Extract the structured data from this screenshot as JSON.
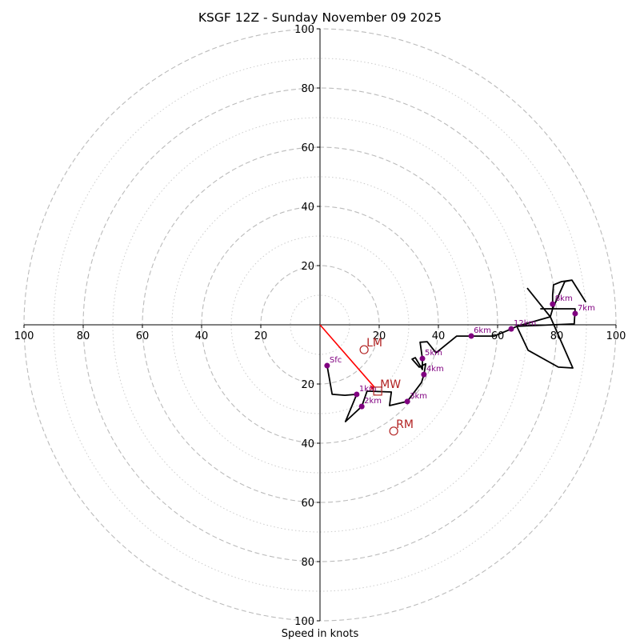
{
  "chart_data": {
    "type": "hodograph",
    "title": "KSGF 12Z - Sunday November 09 2025",
    "xlabel": "Speed in knots",
    "ylabel": "",
    "range_knots": 100,
    "ring_major_knots": [
      20,
      40,
      60,
      80,
      100
    ],
    "ring_minor_knots": [
      10,
      30,
      50,
      70,
      90
    ],
    "x_tick_labels": [
      "100",
      "80",
      "60",
      "40",
      "20",
      "20",
      "40",
      "60",
      "80",
      "100"
    ],
    "x_tick_values": [
      -100,
      -80,
      -60,
      -40,
      -20,
      20,
      40,
      60,
      80,
      100
    ],
    "y_tick_labels": [
      "100",
      "80",
      "60",
      "40",
      "20",
      "20",
      "40",
      "60",
      "80",
      "100"
    ],
    "y_tick_values": [
      100,
      80,
      60,
      40,
      20,
      -20,
      -40,
      -60,
      -80,
      -100
    ],
    "grid": true,
    "colors": {
      "trace": "#000000",
      "height_marker": "#800080",
      "storm_motion": "#b22222",
      "shear_vector": "#ff0000",
      "ring": "#bbbbbb"
    },
    "trace_uv": [
      [
        2.4,
        -13.8
      ],
      [
        4.1,
        -23.5
      ],
      [
        8.4,
        -23.8
      ],
      [
        12.4,
        -23.5
      ],
      [
        8.6,
        -32.7
      ],
      [
        14.1,
        -27.6
      ],
      [
        15.9,
        -22.4
      ],
      [
        24.1,
        -22.7
      ],
      [
        23.5,
        -27.3
      ],
      [
        29.5,
        -25.9
      ],
      [
        34.3,
        -19.5
      ],
      [
        35.1,
        -16.8
      ],
      [
        35.7,
        -13.2
      ],
      [
        33.5,
        -14.3
      ],
      [
        31.1,
        -11.6
      ],
      [
        32.2,
        -11.1
      ],
      [
        34.6,
        -15.1
      ],
      [
        34.6,
        -11.4
      ],
      [
        33.8,
        -5.9
      ],
      [
        36.2,
        -5.7
      ],
      [
        39.2,
        -9.5
      ],
      [
        46.2,
        -3.8
      ],
      [
        51.1,
        -3.8
      ],
      [
        58.9,
        -3.8
      ],
      [
        64.6,
        -1.4
      ],
      [
        66.5,
        -0.5
      ],
      [
        85.9,
        0.3
      ],
      [
        86.2,
        5.4
      ],
      [
        78.6,
        5.4
      ],
      [
        74.6,
        5.4
      ],
      [
        78.6,
        5.4
      ],
      [
        78.6,
        10.0
      ],
      [
        78.9,
        13.5
      ],
      [
        81.6,
        14.6
      ],
      [
        85.1,
        15.1
      ],
      [
        89.7,
        7.8
      ],
      [
        85.1,
        15.1
      ],
      [
        82.7,
        14.6
      ],
      [
        78.6,
        5.4
      ],
      [
        77.8,
        2.7
      ],
      [
        85.4,
        -14.6
      ],
      [
        80.5,
        -14.3
      ],
      [
        70.3,
        -8.6
      ],
      [
        66.5,
        -0.5
      ],
      [
        77.8,
        2.7
      ],
      [
        70.0,
        12.4
      ]
    ],
    "height_markers": [
      {
        "label": "Sfc",
        "u": 2.4,
        "v": -13.8
      },
      {
        "label": "1km",
        "u": 12.4,
        "v": -23.5
      },
      {
        "label": "2km",
        "u": 14.1,
        "v": -27.6
      },
      {
        "label": "3km",
        "u": 29.5,
        "v": -25.9
      },
      {
        "label": "4km",
        "u": 35.1,
        "v": -16.8
      },
      {
        "label": "5km",
        "u": 34.6,
        "v": -11.4
      },
      {
        "label": "6km",
        "u": 51.1,
        "v": -3.8
      },
      {
        "label": "7km",
        "u": 86.2,
        "v": 3.8
      },
      {
        "label": "8km",
        "u": 78.6,
        "v": 7.0
      },
      {
        "label": "12km",
        "u": 64.6,
        "v": -1.4
      }
    ],
    "storm_motions": [
      {
        "label": "LM",
        "u": 14.9,
        "v": -8.4,
        "marker": "circle"
      },
      {
        "label": "MW",
        "u": 19.5,
        "v": -22.4,
        "marker": "square"
      },
      {
        "label": "RM",
        "u": 24.9,
        "v": -35.9,
        "marker": "circle"
      }
    ],
    "shear_vector": {
      "from": [
        0,
        0
      ],
      "to": [
        18.4,
        -21.1
      ]
    }
  }
}
